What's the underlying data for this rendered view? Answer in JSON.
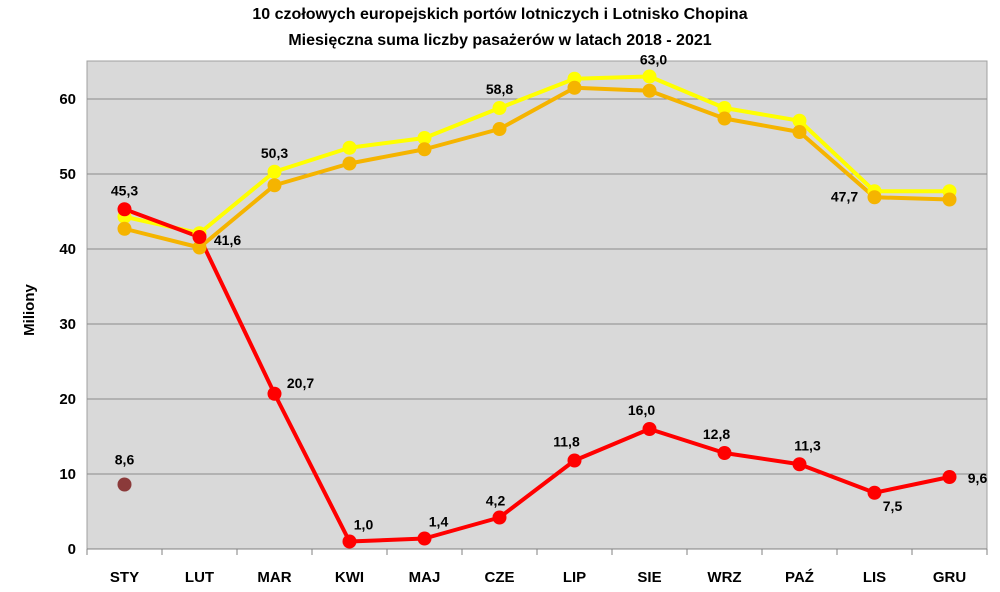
{
  "chart_data": {
    "type": "line",
    "title": "10 czołowych europejskich portów lotniczych i Lotnisko Chopina",
    "subtitle": "Miesięczna suma liczby pasażerów w latach 2018 - 2021",
    "ylabel": "Miliony",
    "xlabel": "",
    "ylim": [
      0,
      65
    ],
    "yticks": [
      0,
      10,
      20,
      30,
      40,
      50,
      60
    ],
    "grid": true,
    "legend": "none",
    "categories": [
      "STY",
      "LUT",
      "MAR",
      "KWI",
      "MAJ",
      "CZE",
      "LIP",
      "SIE",
      "WRZ",
      "PAŹ",
      "LIS",
      "GRU"
    ],
    "series": [
      {
        "color": "#FFFF00",
        "values": [
          44.3,
          42.1,
          50.3,
          53.5,
          54.8,
          58.8,
          62.7,
          63.0,
          58.8,
          57.1,
          47.7,
          47.7
        ],
        "labels": [
          null,
          null,
          "50,3",
          null,
          null,
          "58,8",
          null,
          "63,0",
          null,
          null,
          "47,7",
          null
        ]
      },
      {
        "color": "#F5B400",
        "values": [
          42.7,
          40.2,
          48.5,
          51.4,
          53.3,
          56.0,
          61.5,
          61.1,
          57.4,
          55.6,
          46.9,
          46.6
        ],
        "labels": [
          null,
          null,
          null,
          null,
          null,
          null,
          null,
          null,
          null,
          null,
          null,
          null
        ]
      },
      {
        "color": "#FF0000",
        "values": [
          45.3,
          41.6,
          20.7,
          1.0,
          1.4,
          4.2,
          11.8,
          16.0,
          12.8,
          11.3,
          7.5,
          9.6
        ],
        "labels": [
          "45,3",
          "41,6",
          "20,7",
          "1,0",
          "1,4",
          "4,2",
          "11,8",
          "16,0",
          "12,8",
          "11,3",
          "7,5",
          "9,6"
        ]
      },
      {
        "color": "#8B3A3A",
        "values": [
          8.6,
          null,
          null,
          null,
          null,
          null,
          null,
          null,
          null,
          null,
          null,
          null
        ],
        "labels": [
          "8,6",
          null,
          null,
          null,
          null,
          null,
          null,
          null,
          null,
          null,
          null,
          null
        ]
      }
    ]
  }
}
